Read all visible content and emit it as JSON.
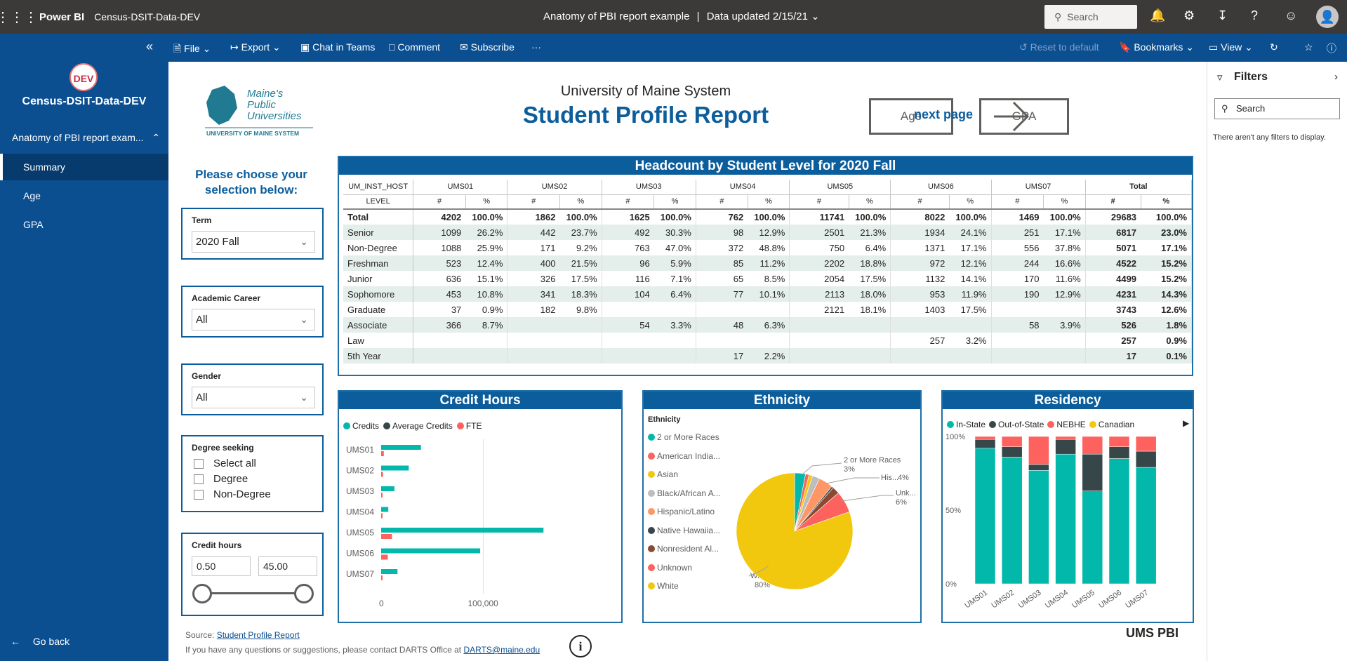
{
  "topbar": {
    "app_name": "Power BI",
    "workspace": "Census-DSIT-Data-DEV",
    "report_title": "Anatomy of PBI report example",
    "separator": "|",
    "data_updated": "Data updated 2/15/21",
    "search_placeholder": "Search",
    "avatar_initial": "👤"
  },
  "commandbar": {
    "file": "File",
    "export": "Export",
    "chat": "Chat in Teams",
    "comment": "Comment",
    "subscribe": "Subscribe",
    "more": "···",
    "reset": "Reset to default",
    "bookmarks": "Bookmarks",
    "view": "View"
  },
  "nav": {
    "badge": "DEV",
    "workspace": "Census-DSIT-Data-DEV",
    "report": "Anatomy of PBI report exam...",
    "pages": [
      "Summary",
      "Age",
      "GPA"
    ],
    "active_page": "Summary",
    "go_back": "Go back"
  },
  "filters_pane": {
    "title": "Filters",
    "search_placeholder": "Search",
    "empty_text": "There aren't any filters to display."
  },
  "report": {
    "logo_line1": "Maine's",
    "logo_line2": "Public",
    "logo_line3": "Universities",
    "logo_tagline": "UNIVERSITY OF MAINE SYSTEM",
    "subtitle": "University of Maine System",
    "title": "Student Profile Report",
    "age_button": "Age",
    "gpa_button": "GPA",
    "next_page": "next page",
    "choose_text": "Please choose your selection below:",
    "source_label": "Source:",
    "source_link": "Student Profile Report",
    "contact_text": "If you have any questions or suggestions, please contact DARTS Office at",
    "contact_email": "DARTS@maine.edu",
    "brand_logo": "UMS PBI"
  },
  "slicers": {
    "term": {
      "title": "Term",
      "value": "2020 Fall"
    },
    "career": {
      "title": "Academic Career",
      "value": "All"
    },
    "gender": {
      "title": "Gender",
      "value": "All"
    },
    "degree": {
      "title": "Degree seeking",
      "options": [
        "Select all",
        "Degree",
        "Non-Degree"
      ]
    },
    "credit": {
      "title": "Credit hours",
      "min": "0.50",
      "max": "45.00"
    }
  },
  "headcount": {
    "title": "Headcount by Student Level for 2020 Fall",
    "host_label": "UM_INST_HOST",
    "level_label": "LEVEL",
    "campuses": [
      "UMS01",
      "UMS02",
      "UMS03",
      "UMS04",
      "UMS05",
      "UMS06",
      "UMS07",
      "Total"
    ],
    "sub_headers": [
      "#",
      "%"
    ],
    "rows": [
      {
        "level": "Total",
        "cells": [
          "4202",
          "100.0%",
          "1862",
          "100.0%",
          "1625",
          "100.0%",
          "762",
          "100.0%",
          "11741",
          "100.0%",
          "8022",
          "100.0%",
          "1469",
          "100.0%",
          "29683",
          "100.0%"
        ]
      },
      {
        "level": "Senior",
        "cells": [
          "1099",
          "26.2%",
          "442",
          "23.7%",
          "492",
          "30.3%",
          "98",
          "12.9%",
          "2501",
          "21.3%",
          "1934",
          "24.1%",
          "251",
          "17.1%",
          "6817",
          "23.0%"
        ]
      },
      {
        "level": "Non-Degree",
        "cells": [
          "1088",
          "25.9%",
          "171",
          "9.2%",
          "763",
          "47.0%",
          "372",
          "48.8%",
          "750",
          "6.4%",
          "1371",
          "17.1%",
          "556",
          "37.8%",
          "5071",
          "17.1%"
        ]
      },
      {
        "level": "Freshman",
        "cells": [
          "523",
          "12.4%",
          "400",
          "21.5%",
          "96",
          "5.9%",
          "85",
          "11.2%",
          "2202",
          "18.8%",
          "972",
          "12.1%",
          "244",
          "16.6%",
          "4522",
          "15.2%"
        ]
      },
      {
        "level": "Junior",
        "cells": [
          "636",
          "15.1%",
          "326",
          "17.5%",
          "116",
          "7.1%",
          "65",
          "8.5%",
          "2054",
          "17.5%",
          "1132",
          "14.1%",
          "170",
          "11.6%",
          "4499",
          "15.2%"
        ]
      },
      {
        "level": "Sophomore",
        "cells": [
          "453",
          "10.8%",
          "341",
          "18.3%",
          "104",
          "6.4%",
          "77",
          "10.1%",
          "2113",
          "18.0%",
          "953",
          "11.9%",
          "190",
          "12.9%",
          "4231",
          "14.3%"
        ]
      },
      {
        "level": "Graduate",
        "cells": [
          "37",
          "0.9%",
          "182",
          "9.8%",
          "",
          "",
          "",
          "",
          "2121",
          "18.1%",
          "1403",
          "17.5%",
          "",
          "",
          "3743",
          "12.6%"
        ]
      },
      {
        "level": "Associate",
        "cells": [
          "366",
          "8.7%",
          "",
          "",
          "54",
          "3.3%",
          "48",
          "6.3%",
          "",
          "",
          "",
          "",
          "58",
          "3.9%",
          "526",
          "1.8%"
        ]
      },
      {
        "level": "Law",
        "cells": [
          "",
          "",
          "",
          "",
          "",
          "",
          "",
          "",
          "",
          "",
          "257",
          "3.2%",
          "",
          "",
          "257",
          "0.9%"
        ]
      },
      {
        "level": "5th Year",
        "cells": [
          "",
          "",
          "",
          "",
          "",
          "",
          "17",
          "2.2%",
          "",
          "",
          "",
          "",
          "",
          "",
          "17",
          "0.1%"
        ]
      }
    ]
  },
  "credit_chart": {
    "title": "Credit Hours",
    "legend": [
      {
        "label": "Credits",
        "color": "#01b8aa"
      },
      {
        "label": "Average Credits",
        "color": "#374649"
      },
      {
        "label": "FTE",
        "color": "#fd625e"
      }
    ]
  },
  "ethnicity_chart": {
    "title": "Ethnicity",
    "legend_title": "Ethnicity",
    "legend": [
      {
        "label": "2 or More Races",
        "color": "#01b8aa"
      },
      {
        "label": "American India...",
        "color": "#fd625e"
      },
      {
        "label": "Asian",
        "color": "#f2c80f"
      },
      {
        "label": "Black/African A...",
        "color": "#bdbdbd"
      },
      {
        "label": "Hispanic/Latino",
        "color": "#fe9666"
      },
      {
        "label": "Native Hawaiia...",
        "color": "#374649"
      },
      {
        "label": "Nonresident Al...",
        "color": "#8a4a31"
      },
      {
        "label": "Unknown",
        "color": "#fd625e"
      },
      {
        "label": "White",
        "color": "#f2c80f"
      }
    ],
    "labels": {
      "two_more": "2 or More Races",
      "two_more_pct": "3%",
      "hisp": "His...",
      "hisp_pct": "4%",
      "unk": "Unk...",
      "unk_pct": "6%",
      "white": "White",
      "white_pct": "80%"
    }
  },
  "residency_chart": {
    "title": "Residency",
    "legend": [
      {
        "label": "In-State",
        "color": "#01b8aa"
      },
      {
        "label": "Out-of-State",
        "color": "#374649"
      },
      {
        "label": "NEBHE",
        "color": "#fd625e"
      },
      {
        "label": "Canadian",
        "color": "#f2c80f"
      }
    ]
  },
  "chart_data": [
    {
      "type": "bar",
      "orientation": "horizontal",
      "title": "Credit Hours",
      "categories": [
        "UMS01",
        "UMS02",
        "UMS03",
        "UMS04",
        "UMS05",
        "UMS06",
        "UMS07"
      ],
      "series": [
        {
          "name": "Credits",
          "values": [
            39000,
            27000,
            13000,
            7000,
            159000,
            97000,
            16000
          ]
        },
        {
          "name": "FTE",
          "values": [
            2600,
            1800,
            900,
            500,
            10600,
            6500,
            1100
          ]
        }
      ],
      "xticks": [
        "0",
        "100,000"
      ],
      "xlim": [
        0,
        165000
      ]
    },
    {
      "type": "pie",
      "title": "Ethnicity",
      "labels": [
        "2 or More Races",
        "American India...",
        "Asian",
        "Black/African A...",
        "Hispanic/Latino",
        "Native Hawaiia...",
        "Nonresident Al...",
        "Unknown",
        "White"
      ],
      "values": [
        3,
        1,
        1,
        2,
        4,
        0.5,
        2,
        6,
        80
      ]
    },
    {
      "type": "bar",
      "stacked": "100%",
      "title": "Residency",
      "categories": [
        "UMS01",
        "UMS02",
        "UMS03",
        "UMS04",
        "UMS05",
        "UMS06",
        "UMS07"
      ],
      "series": [
        {
          "name": "In-State",
          "values": [
            92,
            86,
            77,
            88,
            63,
            85,
            79
          ]
        },
        {
          "name": "Out-of-State",
          "values": [
            6,
            7,
            4,
            10,
            25,
            8,
            11
          ]
        },
        {
          "name": "NEBHE",
          "values": [
            2,
            7,
            19,
            2,
            12,
            7,
            10
          ]
        },
        {
          "name": "Canadian",
          "values": [
            0,
            0,
            0,
            0,
            0,
            0,
            0
          ]
        }
      ],
      "yticks": [
        "0%",
        "50%",
        "100%"
      ]
    }
  ]
}
